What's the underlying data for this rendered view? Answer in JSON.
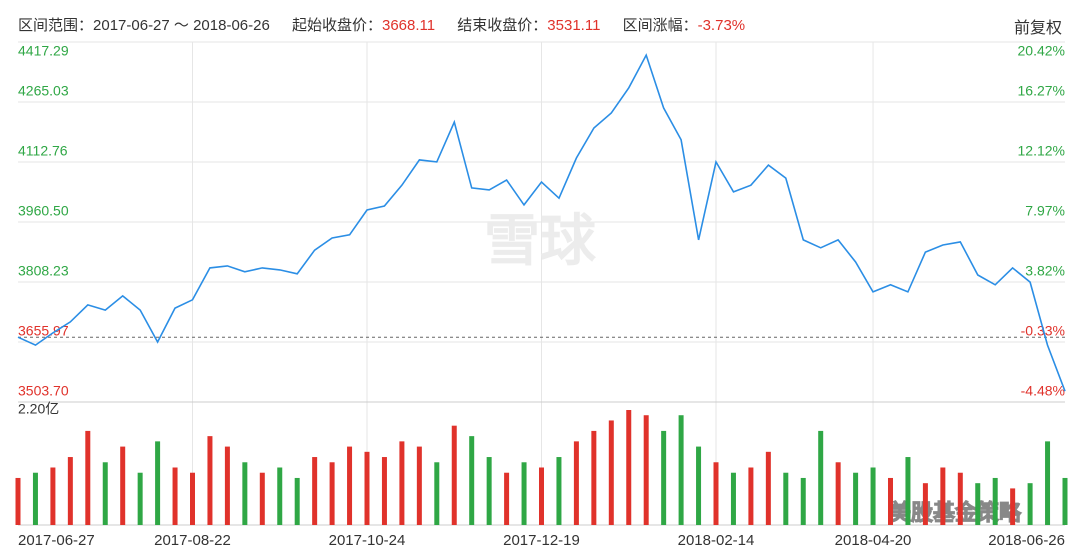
{
  "header": {
    "range_label": "区间范围：",
    "range": "2017-06-27 ～ 2018-06-26",
    "start_label": "起始收盘价：",
    "start_close": 3668.11,
    "end_label": "结束收盘价：",
    "end_close": 3531.11,
    "change_label": "区间涨幅：",
    "change": "-3.73%",
    "adjust": "前复权"
  },
  "watermark": "雪球",
  "footer_watermark": "美股基金策略",
  "chart_data": {
    "type": "line",
    "color": "#2b8ee5",
    "up_color": "#e0322b",
    "down_color": "#2fa745",
    "grid": true,
    "categories": [
      "2017-06-27",
      null,
      null,
      null,
      null,
      null,
      null,
      null,
      null,
      null,
      "2017-08-22",
      null,
      null,
      null,
      null,
      null,
      null,
      null,
      null,
      null,
      "2017-10-24",
      null,
      null,
      null,
      null,
      null,
      null,
      null,
      null,
      null,
      "2017-12-19",
      null,
      null,
      null,
      null,
      null,
      null,
      null,
      null,
      null,
      "2018-02-14",
      null,
      null,
      null,
      null,
      null,
      null,
      null,
      null,
      "2018-04-20",
      null,
      null,
      null,
      null,
      null,
      null,
      null,
      null,
      null,
      null,
      "2018-06-26"
    ],
    "values": [
      3668.11,
      3648,
      3679,
      3707,
      3750,
      3737,
      3773,
      3737,
      3656,
      3742,
      3763,
      3844,
      3849,
      3834,
      3844,
      3839,
      3829,
      3889,
      3920,
      3928,
      3991,
      4001,
      4054,
      4118,
      4113,
      4214,
      4047,
      4042,
      4067,
      4004,
      4062,
      4021,
      4123,
      4199,
      4237,
      4301,
      4384,
      4250,
      4169,
      3915,
      4113,
      4037,
      4054,
      4105,
      4072,
      3915,
      3895,
      3915,
      3859,
      3783,
      3801,
      3783,
      3884,
      3902,
      3910,
      3826,
      3801,
      3844,
      3808,
      3648,
      3531.11
    ],
    "ylim": [
      3503.7,
      4417.29
    ],
    "yticks": [
      {
        "value": 3503.7,
        "label": "3503.70"
      },
      3655.97,
      3808.23,
      {
        "value": 3960.5,
        "label": "3960.50"
      },
      4112.76,
      4265.03,
      4417.29
    ],
    "y2lim": [
      -4.48,
      20.42
    ],
    "y2ticks": [
      {
        "value": -4.48,
        "label": "-4.48%"
      },
      {
        "value": -0.33,
        "label": "-0.33%"
      },
      {
        "value": 3.82,
        "label": "3.82%"
      },
      {
        "value": 7.97,
        "label": "7.97%"
      },
      {
        "value": 12.12,
        "label": "12.12%"
      },
      {
        "value": 16.27,
        "label": "16.27%"
      },
      {
        "value": 20.42,
        "label": "20.42%"
      }
    ],
    "volume": {
      "ylim": [
        0,
        2.2
      ],
      "yticks": [
        {
          "value": 2.2,
          "label": "2.20亿"
        }
      ],
      "values": [
        0.9,
        1.0,
        1.1,
        1.3,
        1.8,
        1.2,
        1.5,
        1.0,
        1.6,
        1.1,
        1.0,
        1.7,
        1.5,
        1.2,
        1.0,
        1.1,
        0.9,
        1.3,
        1.2,
        1.5,
        1.4,
        1.3,
        1.6,
        1.5,
        1.2,
        1.9,
        1.7,
        1.3,
        1.0,
        1.2,
        1.1,
        1.3,
        1.6,
        1.8,
        2.0,
        2.2,
        2.1,
        1.8,
        2.1,
        1.5,
        1.2,
        1.0,
        1.1,
        1.4,
        1.0,
        0.9,
        1.8,
        1.2,
        1.0,
        1.1,
        0.9,
        1.3,
        0.8,
        1.1,
        1.0,
        0.8,
        0.9,
        0.7,
        0.8,
        1.6,
        0.9
      ]
    }
  }
}
